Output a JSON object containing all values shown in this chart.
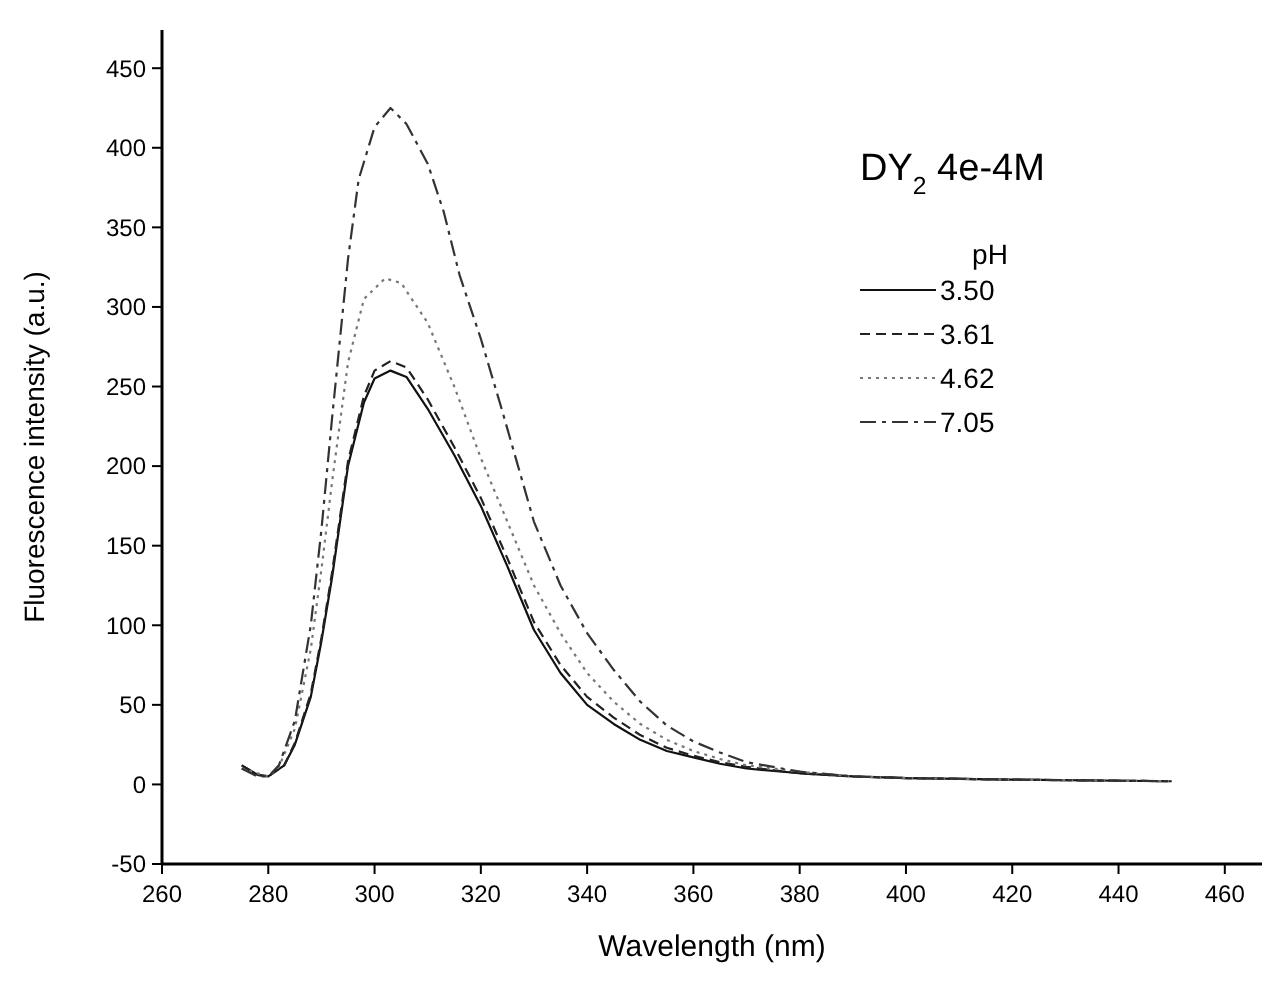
{
  "chart_data": {
    "type": "line",
    "xlabel": "Wavelength (nm)",
    "ylabel": "Fluorescence intensity (a.u.)",
    "legend_title": "pH",
    "legend": "right",
    "annotations": [
      "DY$_{2}$ 4e-4M"
    ],
    "xlim": [
      260,
      467
    ],
    "ylim": [
      -50,
      474
    ],
    "xticks": [
      260,
      280,
      300,
      320,
      340,
      360,
      380,
      400,
      420,
      440,
      460
    ],
    "yticks": [
      -50,
      0,
      50,
      100,
      150,
      200,
      250,
      300,
      350,
      400,
      450
    ],
    "grid": false,
    "series": [
      {
        "name": "3.50",
        "color": "#111111",
        "line_style": "solid",
        "x": [
          275,
          278,
          280,
          283,
          285,
          288,
          290,
          292,
          295,
          298,
          300,
          303,
          306,
          310,
          315,
          320,
          325,
          330,
          335,
          340,
          345,
          350,
          355,
          360,
          365,
          370,
          380,
          390,
          400,
          420,
          450
        ],
        "values": [
          12,
          6,
          5,
          12,
          25,
          55,
          90,
          130,
          200,
          240,
          255,
          260,
          256,
          236,
          207,
          175,
          137,
          97,
          70,
          50,
          38,
          28,
          21,
          17,
          13,
          10,
          7,
          5,
          4,
          3,
          2
        ]
      },
      {
        "name": "3.61",
        "color": "#222222",
        "line_style": "dashed",
        "x": [
          275,
          278,
          280,
          283,
          285,
          288,
          290,
          292,
          295,
          298,
          300,
          303,
          306,
          310,
          315,
          320,
          325,
          330,
          335,
          340,
          345,
          350,
          355,
          360,
          365,
          370,
          380,
          390,
          400,
          420,
          450
        ],
        "values": [
          12,
          6,
          5,
          12,
          26,
          57,
          92,
          133,
          203,
          244,
          260,
          266,
          262,
          242,
          212,
          180,
          142,
          102,
          75,
          55,
          42,
          31,
          23,
          18,
          14,
          11,
          7,
          5,
          4,
          3,
          2
        ]
      },
      {
        "name": "4.62",
        "color": "#777777",
        "line_style": "dotted",
        "x": [
          275,
          280,
          282,
          285,
          288,
          290,
          292,
          295,
          298,
          302,
          305,
          310,
          315,
          320,
          325,
          330,
          335,
          340,
          345,
          350,
          355,
          360,
          365,
          370,
          380,
          390,
          400,
          420,
          450
        ],
        "values": [
          10,
          5,
          11,
          35,
          85,
          135,
          190,
          265,
          305,
          318,
          315,
          290,
          250,
          205,
          165,
          125,
          95,
          70,
          52,
          38,
          28,
          21,
          16,
          12,
          8,
          5,
          4,
          3,
          2
        ]
      },
      {
        "name": "7.05",
        "color": "#333333",
        "line_style": "dashdot",
        "x": [
          275,
          278,
          280,
          282,
          285,
          288,
          290,
          292,
          295,
          297,
          300,
          303,
          306,
          310,
          313,
          316,
          320,
          324,
          327,
          330,
          335,
          340,
          345,
          350,
          355,
          360,
          365,
          370,
          380,
          390,
          400,
          420,
          450
        ],
        "values": [
          10,
          5,
          5,
          12,
          40,
          100,
          160,
          230,
          330,
          380,
          413,
          425,
          415,
          390,
          360,
          320,
          280,
          235,
          200,
          165,
          125,
          95,
          72,
          52,
          37,
          27,
          20,
          14,
          8,
          5,
          4,
          3,
          2
        ]
      }
    ]
  }
}
